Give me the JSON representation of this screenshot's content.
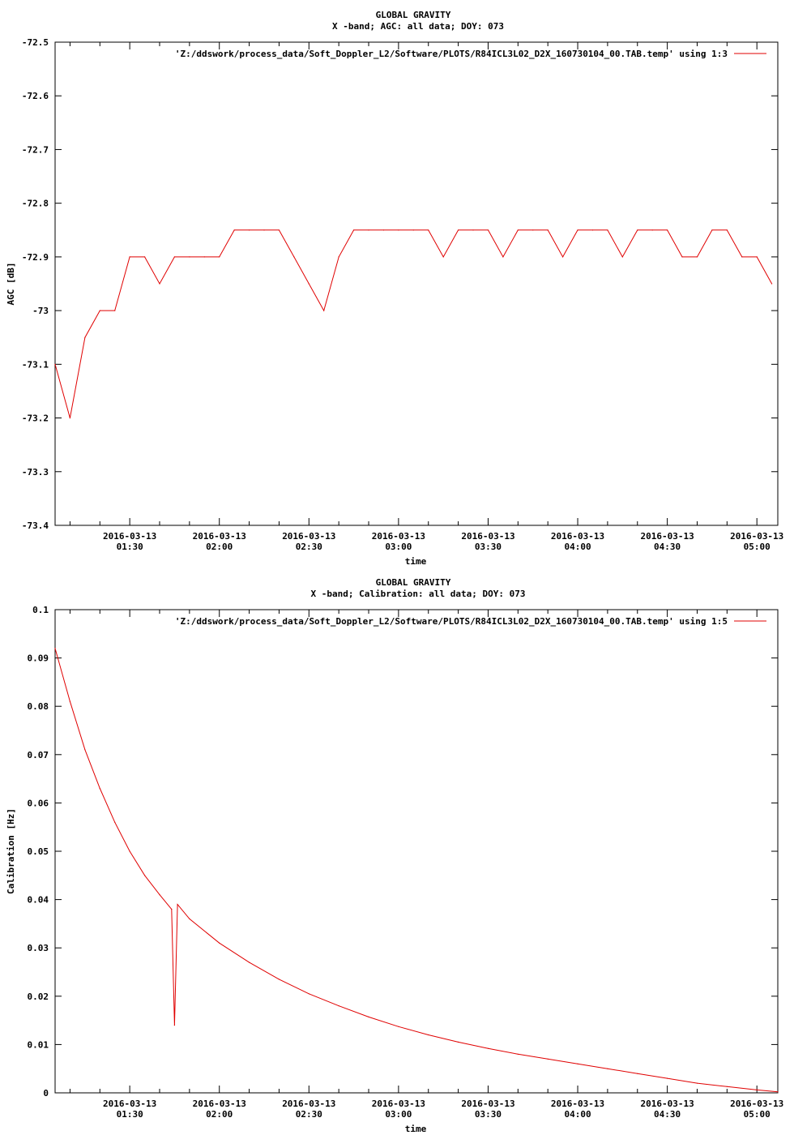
{
  "chart_data": [
    {
      "type": "line",
      "title": "GLOBAL GRAVITY",
      "subtitle": "X -band; AGC: all data; DOY: 073",
      "xlabel": "time",
      "ylabel": "AGC [dB]",
      "ylim": [
        -73.4,
        -72.5
      ],
      "yticks": [
        -72.5,
        -72.6,
        -72.7,
        -72.8,
        -72.9,
        -73,
        -73.1,
        -73.2,
        -73.3,
        -73.4
      ],
      "xlim": [
        "2016-03-13 01:05",
        "2016-03-13 05:07"
      ],
      "xticks": [
        {
          "value": "2016-03-13 01:30",
          "date": "2016-03-13",
          "time": "01:30"
        },
        {
          "value": "2016-03-13 02:00",
          "date": "2016-03-13",
          "time": "02:00"
        },
        {
          "value": "2016-03-13 02:30",
          "date": "2016-03-13",
          "time": "02:30"
        },
        {
          "value": "2016-03-13 03:00",
          "date": "2016-03-13",
          "time": "03:00"
        },
        {
          "value": "2016-03-13 03:30",
          "date": "2016-03-13",
          "time": "03:30"
        },
        {
          "value": "2016-03-13 04:00",
          "date": "2016-03-13",
          "time": "04:00"
        },
        {
          "value": "2016-03-13 04:30",
          "date": "2016-03-13",
          "time": "04:30"
        },
        {
          "value": "2016-03-13 05:00",
          "date": "2016-03-13",
          "time": "05:00"
        }
      ],
      "grid": false,
      "legend_position": "top-right",
      "series": [
        {
          "name": "'Z:/ddswork/process_data/Soft_Doppler_L2/Software/PLOTS/R84ICL3L02_D2X_160730104_00.TAB.temp' using 1:3",
          "color": "#e00000",
          "x": [
            "2016-03-13 01:05",
            "2016-03-13 01:10",
            "2016-03-13 01:15",
            "2016-03-13 01:20",
            "2016-03-13 01:25",
            "2016-03-13 01:30",
            "2016-03-13 01:35",
            "2016-03-13 01:40",
            "2016-03-13 01:45",
            "2016-03-13 01:50",
            "2016-03-13 01:55",
            "2016-03-13 02:00",
            "2016-03-13 02:05",
            "2016-03-13 02:10",
            "2016-03-13 02:15",
            "2016-03-13 02:20",
            "2016-03-13 02:25",
            "2016-03-13 02:30",
            "2016-03-13 02:35",
            "2016-03-13 02:40",
            "2016-03-13 02:45",
            "2016-03-13 02:50",
            "2016-03-13 02:55",
            "2016-03-13 03:00",
            "2016-03-13 03:05",
            "2016-03-13 03:10",
            "2016-03-13 03:15",
            "2016-03-13 03:20",
            "2016-03-13 03:25",
            "2016-03-13 03:30",
            "2016-03-13 03:35",
            "2016-03-13 03:40",
            "2016-03-13 03:45",
            "2016-03-13 03:50",
            "2016-03-13 03:55",
            "2016-03-13 04:00",
            "2016-03-13 04:05",
            "2016-03-13 04:10",
            "2016-03-13 04:15",
            "2016-03-13 04:20",
            "2016-03-13 04:25",
            "2016-03-13 04:30",
            "2016-03-13 04:35",
            "2016-03-13 04:40",
            "2016-03-13 04:45",
            "2016-03-13 04:50",
            "2016-03-13 04:55",
            "2016-03-13 05:00",
            "2016-03-13 05:05"
          ],
          "values": [
            -73.1,
            -73.2,
            -73.05,
            -73.0,
            -73.0,
            -72.9,
            -72.9,
            -72.95,
            -72.9,
            -72.9,
            -72.9,
            -72.9,
            -72.85,
            -72.85,
            -72.85,
            -72.85,
            -72.9,
            -72.95,
            -73.0,
            -72.9,
            -72.85,
            -72.85,
            -72.85,
            -72.85,
            -72.85,
            -72.85,
            -72.9,
            -72.85,
            -72.85,
            -72.85,
            -72.9,
            -72.85,
            -72.85,
            -72.85,
            -72.9,
            -72.85,
            -72.85,
            -72.85,
            -72.9,
            -72.85,
            -72.85,
            -72.85,
            -72.9,
            -72.9,
            -72.85,
            -72.85,
            -72.9,
            -72.9,
            -72.95
          ]
        }
      ]
    },
    {
      "type": "line",
      "title": "GLOBAL GRAVITY",
      "subtitle": "X -band; Calibration: all data; DOY: 073",
      "xlabel": "time",
      "ylabel": "Calibration [Hz]",
      "ylim": [
        0,
        0.1
      ],
      "yticks": [
        0.1,
        0.09,
        0.08,
        0.07,
        0.06,
        0.05,
        0.04,
        0.03,
        0.02,
        0.01,
        0
      ],
      "xlim": [
        "2016-03-13 01:05",
        "2016-03-13 05:07"
      ],
      "xticks": [
        {
          "value": "2016-03-13 01:30",
          "date": "2016-03-13",
          "time": "01:30"
        },
        {
          "value": "2016-03-13 02:00",
          "date": "2016-03-13",
          "time": "02:00"
        },
        {
          "value": "2016-03-13 02:30",
          "date": "2016-03-13",
          "time": "02:30"
        },
        {
          "value": "2016-03-13 03:00",
          "date": "2016-03-13",
          "time": "03:00"
        },
        {
          "value": "2016-03-13 03:30",
          "date": "2016-03-13",
          "time": "03:30"
        },
        {
          "value": "2016-03-13 04:00",
          "date": "2016-03-13",
          "time": "04:00"
        },
        {
          "value": "2016-03-13 04:30",
          "date": "2016-03-13",
          "time": "04:30"
        },
        {
          "value": "2016-03-13 05:00",
          "date": "2016-03-13",
          "time": "05:00"
        }
      ],
      "grid": false,
      "legend_position": "top-right",
      "series": [
        {
          "name": "'Z:/ddswork/process_data/Soft_Doppler_L2/Software/PLOTS/R84ICL3L02_D2X_160730104_00.TAB.temp' using 1:5",
          "color": "#e00000",
          "x": [
            "2016-03-13 01:05",
            "2016-03-13 01:10",
            "2016-03-13 01:15",
            "2016-03-13 01:20",
            "2016-03-13 01:25",
            "2016-03-13 01:30",
            "2016-03-13 01:35",
            "2016-03-13 01:40",
            "2016-03-13 01:44",
            "2016-03-13 01:45",
            "2016-03-13 01:46",
            "2016-03-13 01:50",
            "2016-03-13 02:00",
            "2016-03-13 02:10",
            "2016-03-13 02:20",
            "2016-03-13 02:30",
            "2016-03-13 02:40",
            "2016-03-13 02:50",
            "2016-03-13 03:00",
            "2016-03-13 03:10",
            "2016-03-13 03:20",
            "2016-03-13 03:30",
            "2016-03-13 03:40",
            "2016-03-13 03:50",
            "2016-03-13 04:00",
            "2016-03-13 04:10",
            "2016-03-13 04:20",
            "2016-03-13 04:30",
            "2016-03-13 04:40",
            "2016-03-13 04:50",
            "2016-03-13 05:00",
            "2016-03-13 05:07"
          ],
          "values": [
            0.092,
            0.081,
            0.071,
            0.063,
            0.056,
            0.05,
            0.045,
            0.041,
            0.038,
            0.014,
            0.039,
            0.036,
            0.031,
            0.027,
            0.0235,
            0.0205,
            0.018,
            0.0157,
            0.0137,
            0.012,
            0.0105,
            0.0092,
            0.008,
            0.007,
            0.006,
            0.005,
            0.004,
            0.003,
            0.002,
            0.0013,
            0.0006,
            0.0002
          ]
        }
      ]
    }
  ]
}
